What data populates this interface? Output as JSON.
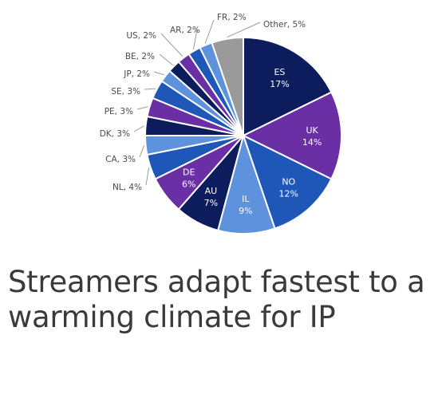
{
  "headline": "Streamers adapt fastest to a warming climate for IP",
  "chart_data": {
    "type": "pie",
    "title": "",
    "slices": [
      {
        "label": "ES",
        "value": 17,
        "display": "17%",
        "color": "#0d1c5c",
        "label_inside": true
      },
      {
        "label": "UK",
        "value": 14,
        "display": "14%",
        "color": "#6a2fa5",
        "label_inside": true
      },
      {
        "label": "NO",
        "value": 12,
        "display": "12%",
        "color": "#1f57b8",
        "label_inside": true
      },
      {
        "label": "IL",
        "value": 9,
        "display": "9%",
        "color": "#5f92dc",
        "label_inside": true
      },
      {
        "label": "AU",
        "value": 7,
        "display": "7%",
        "color": "#0d1c5c",
        "label_inside": true
      },
      {
        "label": "DE",
        "value": 6,
        "display": "6%",
        "color": "#6a2fa5",
        "label_inside": true
      },
      {
        "label": "NL",
        "value": 4,
        "display": "4%",
        "color": "#1f57b8",
        "label_inside": false
      },
      {
        "label": "CA",
        "value": 3,
        "display": "3%",
        "color": "#5f92dc",
        "label_inside": false
      },
      {
        "label": "DK",
        "value": 3,
        "display": "3%",
        "color": "#0d1c5c",
        "label_inside": false
      },
      {
        "label": "PE",
        "value": 3,
        "display": "3%",
        "color": "#6a2fa5",
        "label_inside": false
      },
      {
        "label": "SE",
        "value": 3,
        "display": "3%",
        "color": "#1f57b8",
        "label_inside": false
      },
      {
        "label": "JP",
        "value": 2,
        "display": "2%",
        "color": "#5f92dc",
        "label_inside": false
      },
      {
        "label": "BE",
        "value": 2,
        "display": "2%",
        "color": "#0d1c5c",
        "label_inside": false
      },
      {
        "label": "US",
        "value": 2,
        "display": "2%",
        "color": "#6a2fa5",
        "label_inside": false
      },
      {
        "label": "AR",
        "value": 2,
        "display": "2%",
        "color": "#1f57b8",
        "label_inside": false
      },
      {
        "label": "FR",
        "value": 2,
        "display": "2%",
        "color": "#5f92dc",
        "label_inside": false
      },
      {
        "label": "Other",
        "value": 5,
        "display": "5%",
        "color": "#9a9a9a",
        "label_inside": false
      }
    ]
  }
}
